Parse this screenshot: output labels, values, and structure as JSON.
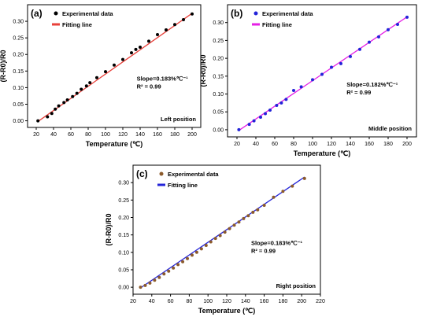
{
  "chart_data": [
    {
      "type": "scatter",
      "panel_label": "(a)",
      "position_label": "Left position",
      "xlabel": "Temperature (℃)",
      "ylabel": "(R-R0)/R0",
      "xlim": [
        10,
        210
      ],
      "ylim": [
        -0.02,
        0.35
      ],
      "xticks": [
        20,
        40,
        60,
        80,
        100,
        120,
        140,
        160,
        180,
        200
      ],
      "yticks": [
        0.0,
        0.05,
        0.1,
        0.15,
        0.2,
        0.25,
        0.3
      ],
      "ytick_labels": [
        "0.00",
        "0.05",
        "0.10",
        "0.15",
        "0.20",
        "0.25",
        "0.30"
      ],
      "annotation_slope": "Slope=0.183%℃⁻¹",
      "annotation_r2": "R² = 0.99",
      "series": [
        {
          "name": "Experimental data",
          "kind": "points",
          "color": "#000000",
          "x": [
            22,
            33,
            38,
            42,
            46,
            52,
            56,
            62,
            67,
            72,
            78,
            82,
            90,
            100,
            110,
            120,
            130,
            135,
            140,
            150,
            160,
            170,
            180,
            190,
            200
          ],
          "y": [
            0.0,
            0.012,
            0.022,
            0.035,
            0.045,
            0.055,
            0.063,
            0.073,
            0.083,
            0.095,
            0.105,
            0.115,
            0.13,
            0.148,
            0.168,
            0.185,
            0.205,
            0.215,
            0.222,
            0.24,
            0.26,
            0.274,
            0.29,
            0.305,
            0.322
          ]
        },
        {
          "name": "Fitting line",
          "kind": "line",
          "color": "#e8403a",
          "x": [
            22,
            200
          ],
          "y": [
            -0.002,
            0.324
          ]
        }
      ]
    },
    {
      "type": "scatter",
      "panel_label": "(b)",
      "position_label": "Middle position",
      "xlabel": "Temperature (℃)",
      "ylabel": "(R-R0)/R0",
      "xlim": [
        10,
        210
      ],
      "ylim": [
        -0.02,
        0.35
      ],
      "xticks": [
        20,
        40,
        60,
        80,
        100,
        120,
        140,
        160,
        180,
        200
      ],
      "yticks": [
        0.0,
        0.05,
        0.1,
        0.15,
        0.2,
        0.25,
        0.3
      ],
      "ytick_labels": [
        "0.00",
        "0.05",
        "0.10",
        "0.15",
        "0.20",
        "0.25",
        "0.30"
      ],
      "annotation_slope": "Slope=0.182%℃⁻¹",
      "annotation_r2": "R² = 0.99",
      "series": [
        {
          "name": "Experimental data",
          "kind": "points",
          "color": "#2323d8",
          "x": [
            22,
            33,
            38,
            45,
            50,
            55,
            62,
            67,
            72,
            80,
            88,
            100,
            110,
            120,
            130,
            140,
            150,
            160,
            170,
            180,
            190,
            200
          ],
          "y": [
            0.0,
            0.015,
            0.025,
            0.035,
            0.045,
            0.055,
            0.068,
            0.075,
            0.085,
            0.11,
            0.12,
            0.14,
            0.155,
            0.175,
            0.185,
            0.205,
            0.225,
            0.245,
            0.26,
            0.28,
            0.295,
            0.315
          ]
        },
        {
          "name": "Fitting line",
          "kind": "line",
          "color": "#e51fe5",
          "x": [
            22,
            200
          ],
          "y": [
            -0.002,
            0.316
          ]
        }
      ]
    },
    {
      "type": "scatter",
      "panel_label": "(c)",
      "position_label": "Right position",
      "xlabel": "Temperature (℃)",
      "ylabel": "(R-R0)/R0",
      "xlim": [
        20,
        220
      ],
      "ylim": [
        -0.02,
        0.35
      ],
      "xticks": [
        20,
        40,
        60,
        80,
        100,
        120,
        140,
        160,
        180,
        200,
        220
      ],
      "yticks": [
        0.0,
        0.05,
        0.1,
        0.15,
        0.2,
        0.25,
        0.3
      ],
      "ytick_labels": [
        "0.00",
        "0.05",
        "0.10",
        "0.15",
        "0.20",
        "0.25",
        "0.30"
      ],
      "annotation_slope": "Slope=0.183%℃⁻¹",
      "annotation_r2": "R² = 0.99",
      "series": [
        {
          "name": "Experimental data",
          "kind": "points",
          "color": "#8b5a2b",
          "x": [
            28,
            33,
            38,
            43,
            48,
            53,
            58,
            63,
            68,
            73,
            78,
            83,
            88,
            93,
            98,
            103,
            108,
            113,
            118,
            123,
            128,
            133,
            138,
            143,
            148,
            153,
            160,
            170,
            180,
            190,
            203
          ],
          "y": [
            0.0,
            0.005,
            0.012,
            0.02,
            0.028,
            0.038,
            0.046,
            0.055,
            0.065,
            0.073,
            0.082,
            0.092,
            0.1,
            0.11,
            0.12,
            0.13,
            0.14,
            0.148,
            0.158,
            0.168,
            0.178,
            0.187,
            0.197,
            0.205,
            0.215,
            0.222,
            0.235,
            0.258,
            0.275,
            0.29,
            0.312
          ]
        },
        {
          "name": "Fitting line",
          "kind": "line",
          "color": "#2424d8",
          "x": [
            28,
            203
          ],
          "y": [
            -0.002,
            0.316
          ]
        }
      ]
    }
  ]
}
